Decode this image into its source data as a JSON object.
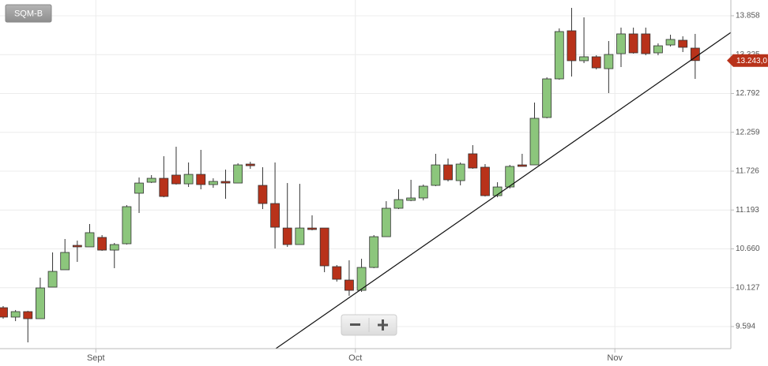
{
  "chart_data": {
    "type": "candlestick",
    "title": "SQM-B",
    "categories": [
      null,
      null,
      null,
      null,
      null,
      null,
      null,
      null,
      "Sept",
      null,
      null,
      null,
      null,
      null,
      null,
      null,
      null,
      null,
      null,
      null,
      null,
      null,
      null,
      null,
      null,
      null,
      null,
      null,
      null,
      "Oct",
      null,
      null,
      null,
      null,
      null,
      null,
      null,
      null,
      null,
      null,
      null,
      null,
      null,
      null,
      null,
      null,
      null,
      null,
      null,
      null,
      "Nov",
      null,
      null,
      null,
      null,
      null,
      null
    ],
    "open": [
      9.853,
      9.724,
      9.799,
      9.702,
      10.135,
      10.373,
      10.708,
      10.687,
      10.817,
      10.643,
      10.73,
      11.423,
      11.574,
      11.628,
      11.672,
      11.552,
      11.682,
      11.542,
      11.585,
      11.563,
      11.823,
      11.531,
      11.282,
      10.946,
      10.719,
      10.946,
      10.946,
      10.416,
      10.232,
      10.091,
      10.405,
      10.827,
      11.217,
      11.325,
      11.358,
      11.531,
      11.812,
      11.596,
      11.964,
      11.78,
      11.39,
      11.509,
      11.812,
      11.812,
      12.462,
      12.992,
      13.652,
      13.241,
      13.295,
      13.132,
      13.338,
      13.609,
      13.609,
      13.349,
      13.457,
      13.522,
      13.414
    ],
    "high": [
      9.875,
      9.821,
      9.81,
      10.265,
      10.611,
      10.795,
      10.773,
      11.001,
      10.849,
      10.741,
      11.26,
      11.639,
      11.672,
      11.931,
      12.061,
      11.845,
      12.018,
      11.628,
      11.747,
      11.834,
      11.855,
      11.78,
      11.845,
      11.563,
      11.552,
      11.12,
      10.946,
      10.438,
      10.503,
      10.524,
      10.849,
      11.314,
      11.477,
      11.607,
      11.542,
      11.964,
      11.899,
      11.845,
      12.083,
      11.823,
      11.574,
      11.812,
      11.964,
      12.667,
      13.013,
      13.684,
      13.966,
      13.836,
      13.316,
      13.511,
      13.695,
      13.695,
      13.695,
      13.479,
      13.598,
      13.576,
      13.609
    ],
    "low": [
      9.702,
      9.669,
      9.377,
      9.702,
      10.135,
      10.373,
      10.481,
      10.687,
      10.633,
      10.395,
      10.719,
      11.152,
      11.563,
      11.368,
      11.542,
      11.509,
      11.477,
      11.498,
      11.347,
      11.563,
      11.758,
      11.206,
      10.665,
      10.687,
      10.719,
      10.914,
      10.34,
      10.211,
      10.016,
      10.07,
      10.395,
      10.827,
      11.206,
      11.314,
      11.325,
      11.52,
      11.585,
      11.531,
      11.758,
      11.379,
      11.368,
      11.488,
      11.791,
      11.812,
      12.451,
      12.981,
      13.024,
      13.208,
      13.122,
      12.797,
      13.154,
      13.338,
      13.316,
      13.316,
      13.436,
      13.36,
      12.992
    ],
    "close": [
      9.724,
      9.799,
      9.702,
      10.124,
      10.351,
      10.611,
      10.687,
      10.882,
      10.643,
      10.719,
      11.239,
      11.563,
      11.628,
      11.379,
      11.552,
      11.682,
      11.542,
      11.585,
      11.563,
      11.812,
      11.801,
      11.282,
      10.957,
      10.719,
      10.946,
      10.925,
      10.427,
      10.243,
      10.091,
      10.405,
      10.827,
      11.217,
      11.336,
      11.358,
      11.52,
      11.812,
      11.607,
      11.823,
      11.769,
      11.39,
      11.509,
      11.791,
      11.791,
      12.451,
      12.992,
      13.641,
      13.241,
      13.295,
      13.143,
      13.327,
      13.609,
      13.349,
      13.338,
      13.446,
      13.533,
      13.425,
      13.243
    ],
    "up_color": "#8cc67c",
    "down_color": "#b8321a",
    "ylim": [
      9.291,
      14.074
    ],
    "yticks": [
      9.594,
      10.127,
      {
        "value": 10.66,
        "label": "10.660"
      },
      11.193,
      11.726,
      12.259,
      12.792,
      13.325,
      13.858
    ],
    "grid": true,
    "last_price": {
      "value": 13.243,
      "label": "13.243,0"
    },
    "trend_line": {
      "x": [
        22.06,
        58.9
      ],
      "y": [
        9.291,
        13.63
      ]
    }
  }
}
